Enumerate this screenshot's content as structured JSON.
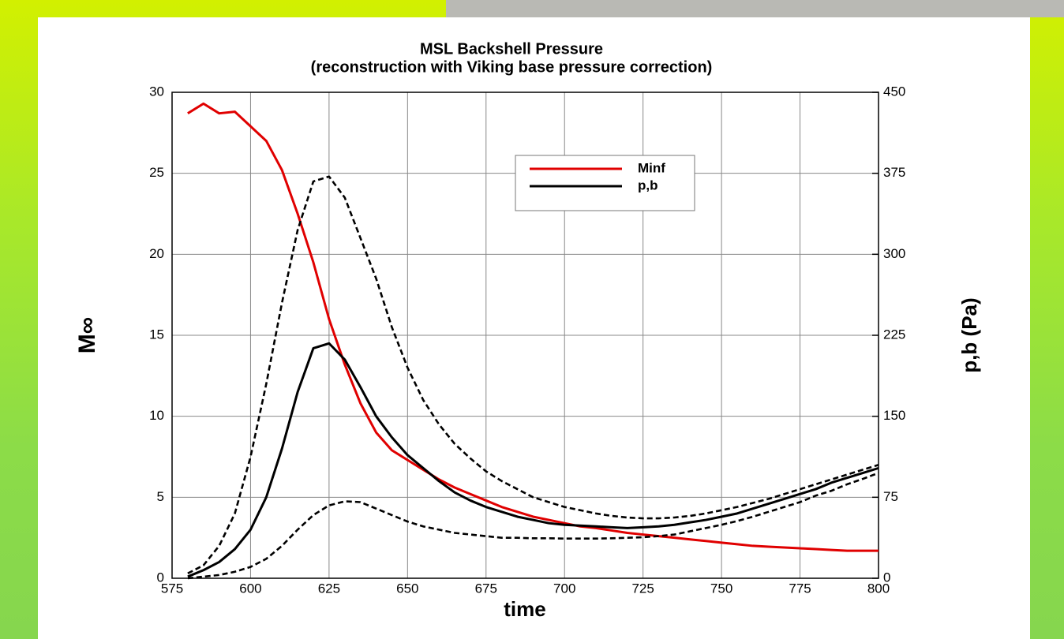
{
  "chart_data": {
    "type": "line",
    "title": "MSL Backshell Pressure",
    "subtitle": "(reconstruction with Viking base pressure correction)",
    "x_label": "time",
    "y_label": "M∞",
    "y2_label": "p,b (Pa)",
    "xlim": [
      575,
      800
    ],
    "xticks": [
      575,
      600,
      625,
      650,
      675,
      700,
      725,
      750,
      775,
      800
    ],
    "ylim": [
      0,
      30
    ],
    "yticks": [
      0,
      5,
      10,
      15,
      20,
      25,
      30
    ],
    "y2lim": [
      0,
      450
    ],
    "y2ticks": [
      0,
      75,
      150,
      225,
      300,
      375,
      450
    ],
    "grid": true,
    "legend": "upper right",
    "x": [
      580,
      585,
      590,
      595,
      600,
      605,
      610,
      615,
      620,
      625,
      630,
      635,
      640,
      645,
      650,
      655,
      660,
      665,
      670,
      675,
      680,
      685,
      690,
      695,
      700,
      705,
      710,
      715,
      720,
      725,
      730,
      735,
      740,
      745,
      750,
      755,
      760,
      765,
      770,
      775,
      780,
      785,
      790,
      795,
      800
    ],
    "series": [
      {
        "name": "Minf",
        "color": "#e00000",
        "axis": "y",
        "values": [
          28.7,
          29.3,
          28.7,
          28.8,
          27.9,
          27.0,
          25.2,
          22.5,
          19.5,
          16.0,
          13.2,
          10.8,
          9.0,
          7.9,
          7.3,
          6.7,
          6.1,
          5.6,
          5.2,
          4.8,
          4.4,
          4.1,
          3.8,
          3.6,
          3.4,
          3.2,
          3.1,
          2.95,
          2.8,
          2.7,
          2.6,
          2.5,
          2.4,
          2.3,
          2.2,
          2.1,
          2.0,
          1.95,
          1.9,
          1.85,
          1.8,
          1.75,
          1.7,
          1.7,
          1.7
        ]
      },
      {
        "name": "p,b",
        "color": "#000000",
        "axis": "y2",
        "values": [
          1.5,
          7.5,
          15,
          27,
          45,
          75,
          120,
          172.5,
          213,
          217.5,
          202.5,
          177,
          150,
          130.5,
          114,
          102,
          90,
          79.5,
          72,
          66,
          61.5,
          57,
          54,
          51,
          49.5,
          48.75,
          48,
          47.25,
          46.5,
          47.25,
          48,
          49.5,
          51.75,
          54,
          57,
          60,
          64.5,
          69,
          73.5,
          78,
          82.5,
          88.5,
          93,
          97.5,
          102
        ]
      },
      {
        "color": "#000000",
        "axis": "y2",
        "line_style": "dashed",
        "values": [
          4.5,
          12,
          30,
          60,
          112.5,
          180,
          255,
          322.5,
          367.5,
          372,
          352.5,
          315,
          277.5,
          232.5,
          195,
          165,
          142.5,
          124.5,
          111,
          99,
          90,
          82.5,
          75,
          70.5,
          66,
          63,
          60,
          57.75,
          56.25,
          55.5,
          55.5,
          56.25,
          57.75,
          60,
          63,
          66,
          69.75,
          73.5,
          78,
          82.5,
          87,
          91.5,
          96,
          100.5,
          105
        ]
      },
      {
        "color": "#000000",
        "axis": "y2",
        "line_style": "dashed",
        "values": [
          0,
          1.5,
          3,
          6,
          10.5,
          18,
          30,
          45,
          58.5,
          67.5,
          71.25,
          70.5,
          64.5,
          58.5,
          52.5,
          48,
          45,
          42,
          40.5,
          39,
          37.5,
          37.5,
          37,
          37,
          36.75,
          36.75,
          36.75,
          37,
          37.5,
          38,
          39,
          40.5,
          43.5,
          46.5,
          49.5,
          53,
          57,
          61.5,
          66,
          70.5,
          76.5,
          81,
          87,
          92,
          97.5
        ]
      }
    ]
  }
}
